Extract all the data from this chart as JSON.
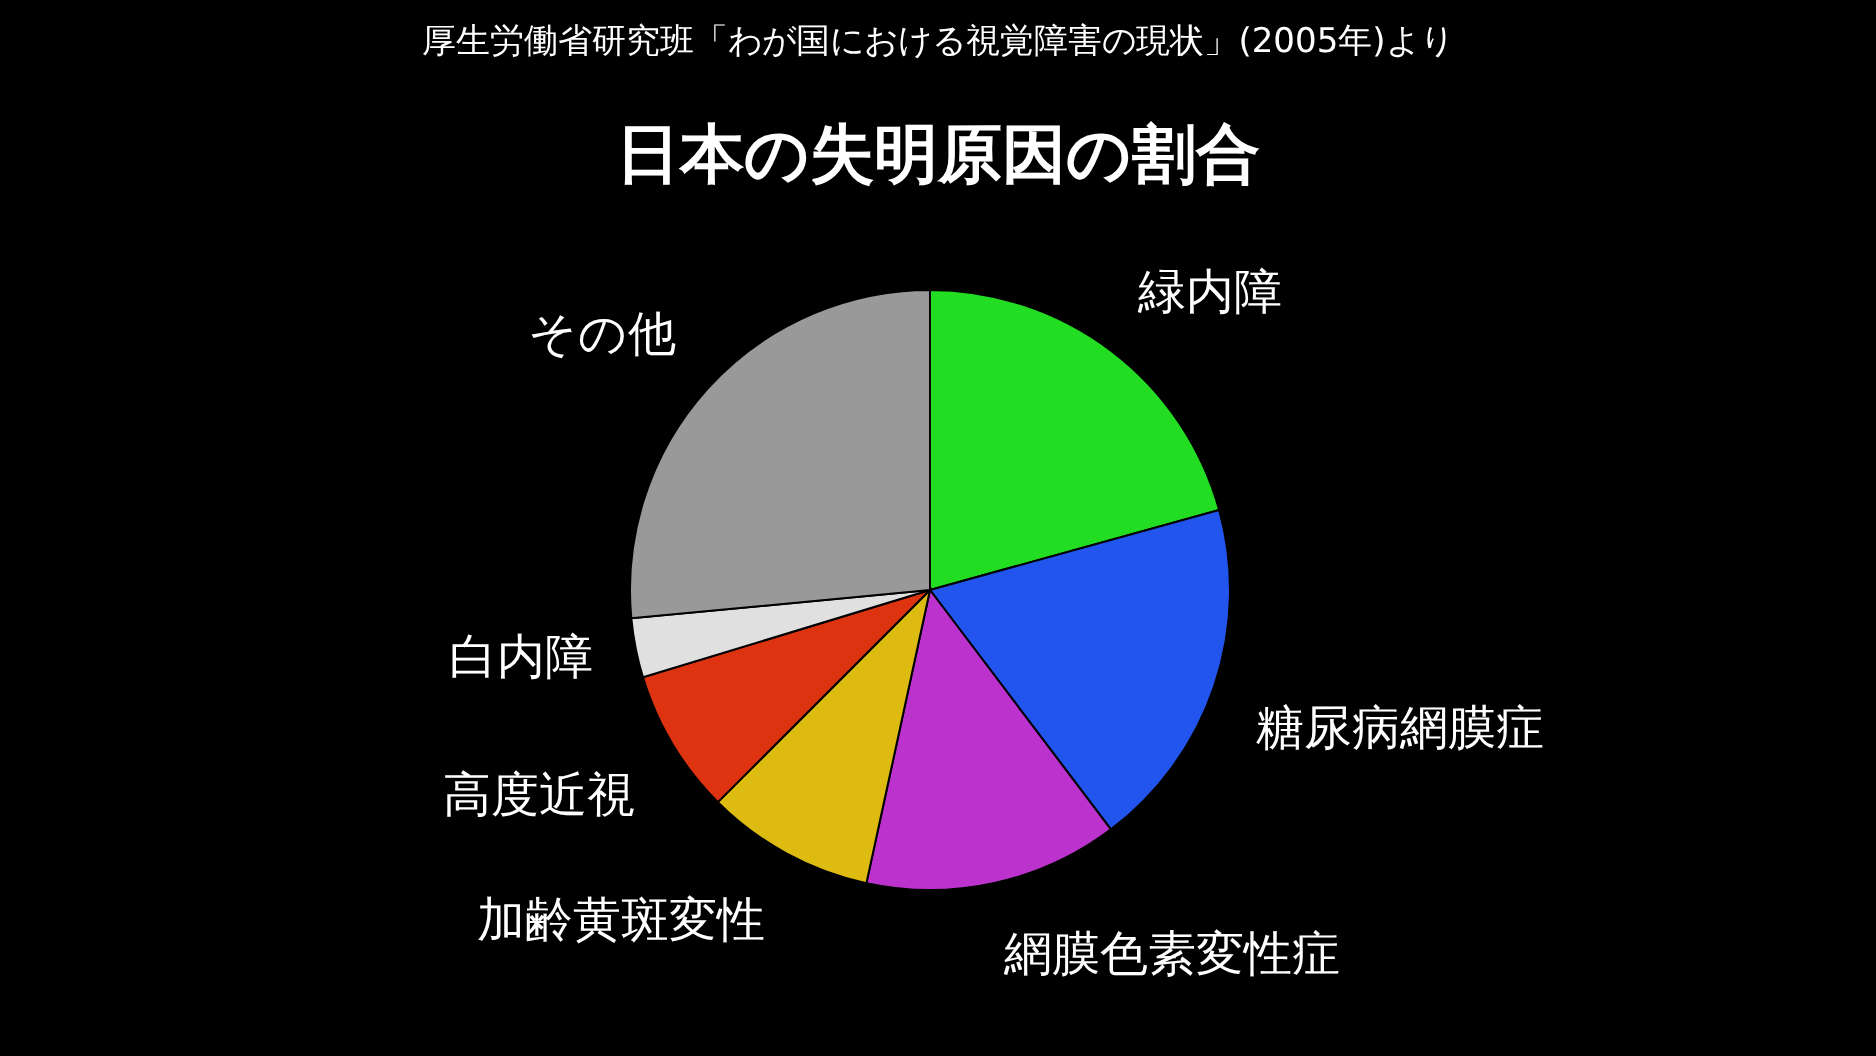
{
  "chart_data": {
    "type": "pie",
    "subtitle": "厚生労働省研究班「わが国における視覚障害の現状」(2005年)より",
    "title": "日本の失明原因の割合",
    "categories": [
      "緑内障",
      "糖尿病網膜症",
      "網膜色素変性症",
      "加齢黄斑変性",
      "高度近視",
      "白内障",
      "その他"
    ],
    "values": [
      20.7,
      19.0,
      13.7,
      9.1,
      7.8,
      3.2,
      26.5
    ],
    "colors": [
      "#22dd22",
      "#2255ee",
      "#bb33cc",
      "#ddbb11",
      "#dd3311",
      "#e0e0e0",
      "#999999"
    ]
  }
}
